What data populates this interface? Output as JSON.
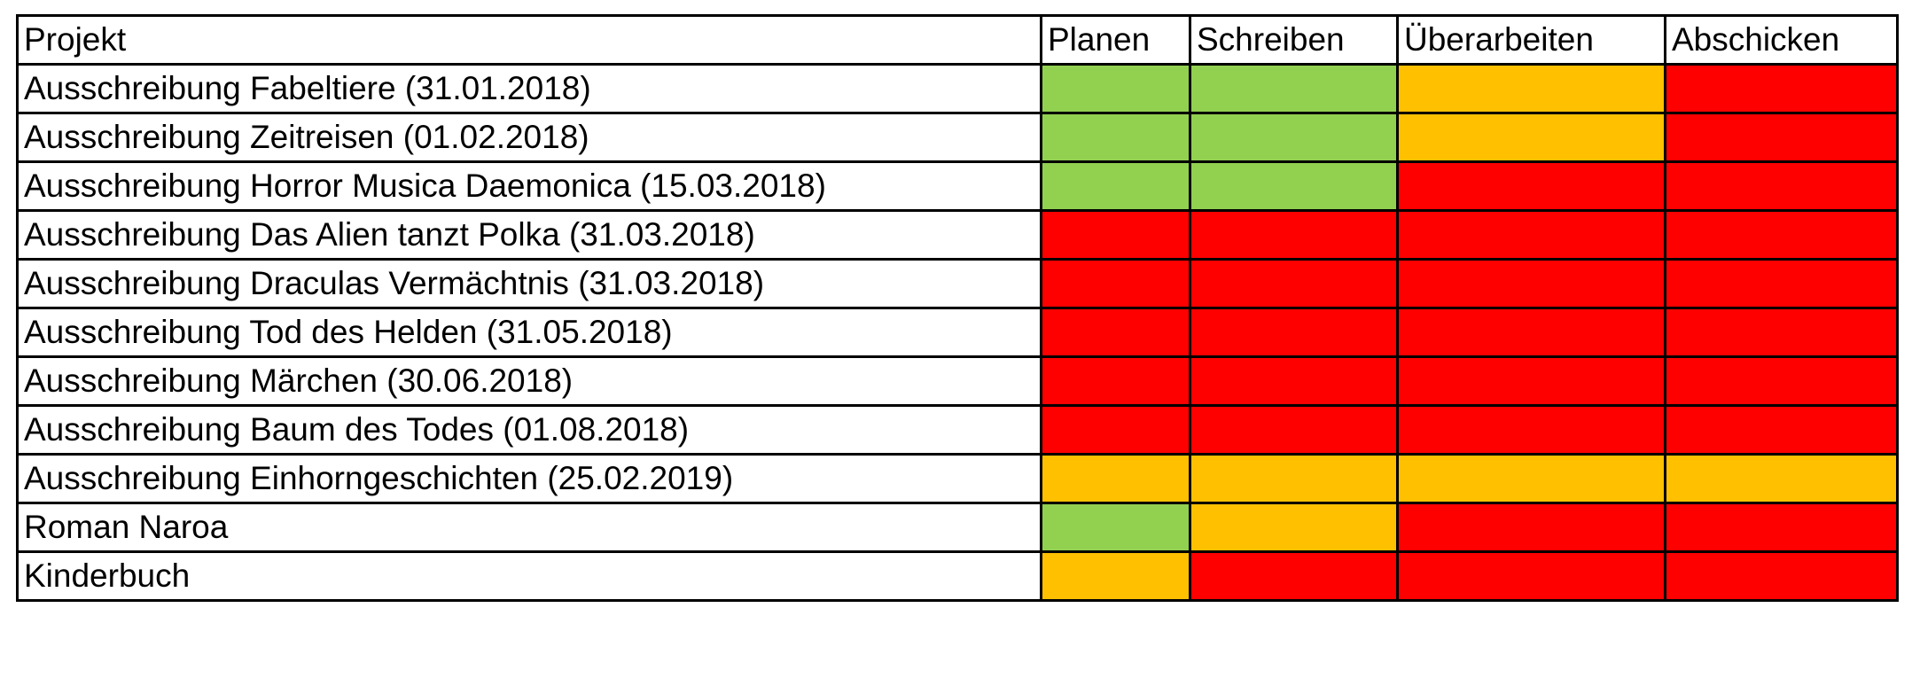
{
  "table": {
    "headers": [
      "Projekt",
      "Planen",
      "Schreiben",
      "Überarbeiten",
      "Abschicken"
    ],
    "status_colors": {
      "green": "#92d050",
      "orange": "#ffc000",
      "red": "#ff0000"
    },
    "rows": [
      {
        "project": "Ausschreibung Fabeltiere (31.01.2018)",
        "statuses": [
          "green",
          "green",
          "orange",
          "red"
        ]
      },
      {
        "project": "Ausschreibung Zeitreisen (01.02.2018)",
        "statuses": [
          "green",
          "green",
          "orange",
          "red"
        ]
      },
      {
        "project": "Ausschreibung Horror Musica Daemonica (15.03.2018)",
        "statuses": [
          "green",
          "green",
          "red",
          "red"
        ]
      },
      {
        "project": "Ausschreibung Das Alien tanzt Polka (31.03.2018)",
        "statuses": [
          "red",
          "red",
          "red",
          "red"
        ]
      },
      {
        "project": "Ausschreibung Draculas Vermächtnis (31.03.2018)",
        "statuses": [
          "red",
          "red",
          "red",
          "red"
        ]
      },
      {
        "project": "Ausschreibung Tod des Helden (31.05.2018)",
        "statuses": [
          "red",
          "red",
          "red",
          "red"
        ]
      },
      {
        "project": "Ausschreibung Märchen (30.06.2018)",
        "statuses": [
          "red",
          "red",
          "red",
          "red"
        ]
      },
      {
        "project": "Ausschreibung Baum des Todes (01.08.2018)",
        "statuses": [
          "red",
          "red",
          "red",
          "red"
        ]
      },
      {
        "project": "Ausschreibung Einhorngeschichten (25.02.2019)",
        "statuses": [
          "orange",
          "orange",
          "orange",
          "orange"
        ]
      },
      {
        "project": "Roman Naroa",
        "statuses": [
          "green",
          "orange",
          "red",
          "red"
        ]
      },
      {
        "project": "Kinderbuch",
        "statuses": [
          "orange",
          "red",
          "red",
          "red"
        ]
      }
    ]
  }
}
